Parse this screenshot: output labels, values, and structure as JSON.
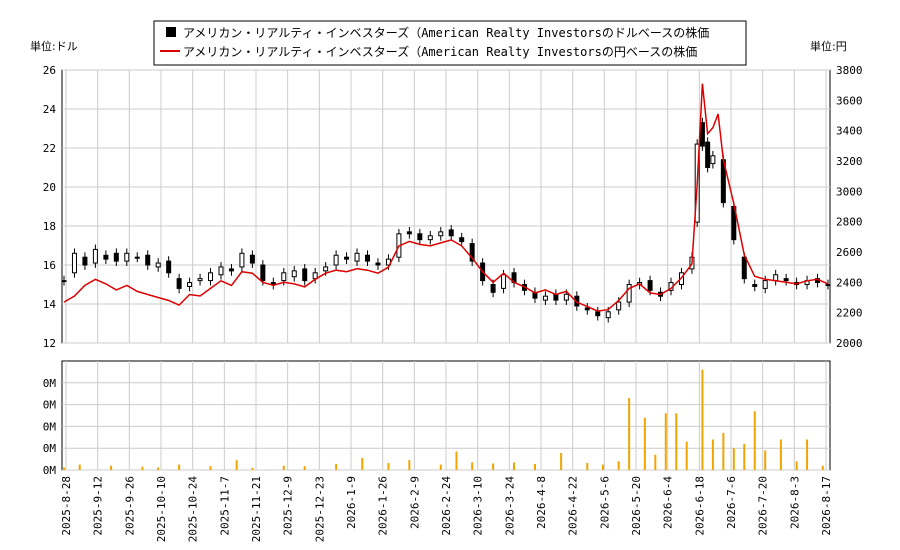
{
  "chart_data": {
    "type": "candlestick-line-bar",
    "legend": {
      "placement": "top-center",
      "entries": [
        {
          "label": "アメリカン・リアルティ・インベスターズ（American Realty Investorsのドルベースの株価",
          "color": "#000000",
          "marker": "square"
        },
        {
          "label": "アメリカン・リアルティ・インベスターズ（American Realty Investorsの円ベースの株価",
          "color": "#dd0000",
          "marker": "line"
        }
      ]
    },
    "left_axis": {
      "unit_label": "単位:ドル",
      "ylim": [
        12,
        26
      ],
      "ticks": [
        12,
        14,
        16,
        18,
        20,
        22,
        24,
        26
      ]
    },
    "right_axis": {
      "unit_label": "単位:円",
      "ylim": [
        2000,
        3800
      ],
      "ticks": [
        2000,
        2200,
        2400,
        2600,
        2800,
        3000,
        3200,
        3400,
        3600,
        3800
      ]
    },
    "volume_axis": {
      "ticks": [
        "0M",
        "0M",
        "0M",
        "0M",
        "0M"
      ]
    },
    "x_ticks": [
      "2025-8-28",
      "2025-9-12",
      "2025-9-26",
      "2025-10-10",
      "2025-10-24",
      "2025-11-7",
      "2025-11-21",
      "2025-12-9",
      "2025-12-23",
      "2026-1-9",
      "2026-1-26",
      "2026-2-9",
      "2026-2-24",
      "2026-3-10",
      "2026-3-24",
      "2026-4-8",
      "2026-4-22",
      "2026-5-6",
      "2026-5-20",
      "2026-6-4",
      "2026-6-18",
      "2026-7-6",
      "2026-7-20",
      "2026-8-3",
      "2026-8-17"
    ],
    "grid": true,
    "usd_series": [
      [
        0,
        15.2,
        15.2
      ],
      [
        2,
        15.6,
        16.6
      ],
      [
        4,
        16.4,
        16.0
      ],
      [
        6,
        16.1,
        16.8
      ],
      [
        8,
        16.5,
        16.3
      ],
      [
        10,
        16.6,
        16.2
      ],
      [
        12,
        16.2,
        16.6
      ],
      [
        14,
        16.4,
        16.4
      ],
      [
        16,
        16.5,
        16.0
      ],
      [
        18,
        15.9,
        16.1
      ],
      [
        20,
        16.2,
        15.6
      ],
      [
        22,
        15.3,
        14.8
      ],
      [
        24,
        14.9,
        15.1
      ],
      [
        26,
        15.2,
        15.3
      ],
      [
        28,
        15.2,
        15.6
      ],
      [
        30,
        15.5,
        15.9
      ],
      [
        32,
        15.8,
        15.7
      ],
      [
        34,
        15.9,
        16.6
      ],
      [
        36,
        16.5,
        16.1
      ],
      [
        38,
        16.0,
        15.2
      ],
      [
        40,
        15.1,
        15.0
      ],
      [
        42,
        15.2,
        15.6
      ],
      [
        44,
        15.4,
        15.7
      ],
      [
        46,
        15.8,
        15.2
      ],
      [
        48,
        15.3,
        15.6
      ],
      [
        50,
        15.7,
        15.9
      ],
      [
        52,
        16.0,
        16.5
      ],
      [
        54,
        16.4,
        16.3
      ],
      [
        56,
        16.2,
        16.6
      ],
      [
        58,
        16.5,
        16.2
      ],
      [
        60,
        16.1,
        16.0
      ],
      [
        62,
        16.0,
        16.3
      ],
      [
        64,
        16.4,
        17.6
      ],
      [
        66,
        17.7,
        17.6
      ],
      [
        68,
        17.6,
        17.3
      ],
      [
        70,
        17.3,
        17.5
      ],
      [
        72,
        17.5,
        17.7
      ],
      [
        74,
        17.8,
        17.5
      ],
      [
        76,
        17.4,
        17.2
      ],
      [
        78,
        17.1,
        16.2
      ],
      [
        80,
        16.1,
        15.2
      ],
      [
        82,
        15.0,
        14.6
      ],
      [
        84,
        14.8,
        15.5
      ],
      [
        86,
        15.6,
        15.1
      ],
      [
        88,
        15.0,
        14.7
      ],
      [
        90,
        14.6,
        14.3
      ],
      [
        92,
        14.2,
        14.4
      ],
      [
        94,
        14.5,
        14.2
      ],
      [
        96,
        14.2,
        14.5
      ],
      [
        98,
        14.4,
        13.9
      ],
      [
        100,
        13.8,
        13.7
      ],
      [
        102,
        13.6,
        13.4
      ],
      [
        104,
        13.3,
        13.6
      ],
      [
        106,
        13.7,
        14.1
      ],
      [
        108,
        14.1,
        15.0
      ],
      [
        110,
        15.0,
        15.1
      ],
      [
        112,
        15.2,
        14.7
      ],
      [
        114,
        14.6,
        14.4
      ],
      [
        116,
        14.7,
        15.1
      ],
      [
        118,
        15.0,
        15.6
      ],
      [
        120,
        15.8,
        16.4
      ],
      [
        121,
        18.2,
        22.2
      ],
      [
        122,
        23.3,
        22.1
      ],
      [
        123,
        22.3,
        21.0
      ],
      [
        124,
        21.2,
        21.6
      ],
      [
        126,
        21.4,
        19.2
      ],
      [
        128,
        19.0,
        17.3
      ],
      [
        130,
        16.4,
        15.3
      ],
      [
        132,
        15.0,
        14.9
      ],
      [
        134,
        14.8,
        15.2
      ],
      [
        136,
        15.2,
        15.5
      ],
      [
        138,
        15.3,
        15.2
      ],
      [
        140,
        15.1,
        15.0
      ],
      [
        142,
        15.0,
        15.2
      ],
      [
        144,
        15.3,
        15.1
      ],
      [
        146,
        15.0,
        15.0
      ]
    ],
    "jpy_series": [
      [
        0,
        2270
      ],
      [
        2,
        2310
      ],
      [
        4,
        2380
      ],
      [
        6,
        2420
      ],
      [
        8,
        2390
      ],
      [
        10,
        2350
      ],
      [
        12,
        2380
      ],
      [
        14,
        2340
      ],
      [
        16,
        2320
      ],
      [
        18,
        2300
      ],
      [
        20,
        2280
      ],
      [
        22,
        2250
      ],
      [
        24,
        2320
      ],
      [
        26,
        2310
      ],
      [
        28,
        2360
      ],
      [
        30,
        2410
      ],
      [
        32,
        2380
      ],
      [
        34,
        2470
      ],
      [
        36,
        2460
      ],
      [
        38,
        2400
      ],
      [
        40,
        2380
      ],
      [
        42,
        2400
      ],
      [
        44,
        2390
      ],
      [
        46,
        2370
      ],
      [
        48,
        2420
      ],
      [
        50,
        2460
      ],
      [
        52,
        2480
      ],
      [
        54,
        2470
      ],
      [
        56,
        2490
      ],
      [
        58,
        2480
      ],
      [
        60,
        2460
      ],
      [
        62,
        2500
      ],
      [
        64,
        2640
      ],
      [
        66,
        2670
      ],
      [
        68,
        2650
      ],
      [
        70,
        2640
      ],
      [
        72,
        2660
      ],
      [
        74,
        2680
      ],
      [
        76,
        2640
      ],
      [
        78,
        2560
      ],
      [
        80,
        2470
      ],
      [
        82,
        2400
      ],
      [
        84,
        2460
      ],
      [
        86,
        2400
      ],
      [
        88,
        2370
      ],
      [
        90,
        2330
      ],
      [
        92,
        2350
      ],
      [
        94,
        2320
      ],
      [
        96,
        2340
      ],
      [
        98,
        2270
      ],
      [
        100,
        2240
      ],
      [
        102,
        2210
      ],
      [
        104,
        2220
      ],
      [
        106,
        2280
      ],
      [
        108,
        2360
      ],
      [
        110,
        2390
      ],
      [
        112,
        2330
      ],
      [
        114,
        2320
      ],
      [
        116,
        2360
      ],
      [
        118,
        2430
      ],
      [
        120,
        2520
      ],
      [
        121,
        3050
      ],
      [
        122,
        3710
      ],
      [
        123,
        3380
      ],
      [
        124,
        3420
      ],
      [
        125,
        3510
      ],
      [
        126,
        3210
      ],
      [
        128,
        2920
      ],
      [
        130,
        2580
      ],
      [
        132,
        2440
      ],
      [
        134,
        2420
      ],
      [
        136,
        2410
      ],
      [
        138,
        2400
      ],
      [
        140,
        2390
      ],
      [
        142,
        2410
      ],
      [
        144,
        2420
      ],
      [
        146,
        2390
      ]
    ],
    "volume": [
      [
        0,
        0.12
      ],
      [
        3,
        0.25
      ],
      [
        9,
        0.2
      ],
      [
        15,
        0.15
      ],
      [
        18,
        0.12
      ],
      [
        22,
        0.25
      ],
      [
        28,
        0.18
      ],
      [
        33,
        0.45
      ],
      [
        36,
        0.1
      ],
      [
        42,
        0.2
      ],
      [
        46,
        0.18
      ],
      [
        52,
        0.28
      ],
      [
        57,
        0.55
      ],
      [
        62,
        0.32
      ],
      [
        66,
        0.45
      ],
      [
        72,
        0.25
      ],
      [
        75,
        0.85
      ],
      [
        78,
        0.35
      ],
      [
        82,
        0.3
      ],
      [
        86,
        0.35
      ],
      [
        90,
        0.28
      ],
      [
        95,
        0.78
      ],
      [
        100,
        0.32
      ],
      [
        103,
        0.25
      ],
      [
        106,
        0.4
      ],
      [
        108,
        3.3
      ],
      [
        111,
        2.4
      ],
      [
        113,
        0.7
      ],
      [
        115,
        2.6
      ],
      [
        117,
        2.6
      ],
      [
        119,
        1.3
      ],
      [
        122,
        4.6
      ],
      [
        124,
        1.4
      ],
      [
        126,
        1.7
      ],
      [
        128,
        1.0
      ],
      [
        130,
        1.2
      ],
      [
        132,
        2.7
      ],
      [
        134,
        0.9
      ],
      [
        137,
        1.4
      ],
      [
        140,
        0.4
      ],
      [
        142,
        1.4
      ],
      [
        145,
        0.2
      ]
    ]
  }
}
